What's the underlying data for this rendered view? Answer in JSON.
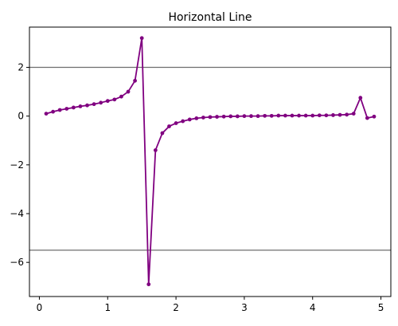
{
  "chart_data": {
    "type": "line",
    "title": "Horizontal Line",
    "xlabel": "",
    "ylabel": "",
    "xlim": [
      -0.145,
      5.145
    ],
    "ylim": [
      -7.4,
      3.65
    ],
    "xticks": [
      0,
      1,
      2,
      3,
      4,
      5
    ],
    "yticks": [
      2,
      0,
      -2,
      -4,
      -6
    ],
    "xtick_labels": [
      "0",
      "1",
      "2",
      "3",
      "4",
      "5"
    ],
    "ytick_labels": [
      "2",
      "0",
      "−2",
      "−4",
      "−6"
    ],
    "grid": false,
    "legend": "none",
    "hlines": [
      {
        "y": 2.0,
        "color": "#6e6e6e"
      },
      {
        "y": -5.5,
        "color": "#6e6e6e"
      }
    ],
    "series": [
      {
        "color": "#800080",
        "x": [
          0.1,
          0.2,
          0.3,
          0.4,
          0.5,
          0.6,
          0.7,
          0.8,
          0.9,
          1.0,
          1.1,
          1.2,
          1.3,
          1.4,
          1.5,
          1.6,
          1.7,
          1.8,
          1.9,
          2.0,
          2.1,
          2.2,
          2.3,
          2.4,
          2.5,
          2.6,
          2.7,
          2.8,
          2.9,
          3.0,
          3.1,
          3.2,
          3.3,
          3.4,
          3.5,
          3.6,
          3.7,
          3.8,
          3.9,
          4.0,
          4.1,
          4.2,
          4.3,
          4.4,
          4.5,
          4.6,
          4.7,
          4.8,
          4.9
        ],
        "y": [
          0.1,
          0.18,
          0.25,
          0.3,
          0.35,
          0.4,
          0.44,
          0.49,
          0.55,
          0.62,
          0.68,
          0.8,
          1.0,
          1.45,
          3.2,
          -6.9,
          -1.4,
          -0.7,
          -0.42,
          -0.29,
          -0.21,
          -0.14,
          -0.09,
          -0.06,
          -0.04,
          -0.03,
          -0.02,
          -0.01,
          -0.01,
          0.0,
          0.0,
          0.0,
          0.01,
          0.01,
          0.02,
          0.02,
          0.02,
          0.02,
          0.02,
          0.02,
          0.03,
          0.03,
          0.04,
          0.05,
          0.06,
          0.1,
          0.75,
          -0.08,
          -0.02
        ]
      }
    ]
  }
}
